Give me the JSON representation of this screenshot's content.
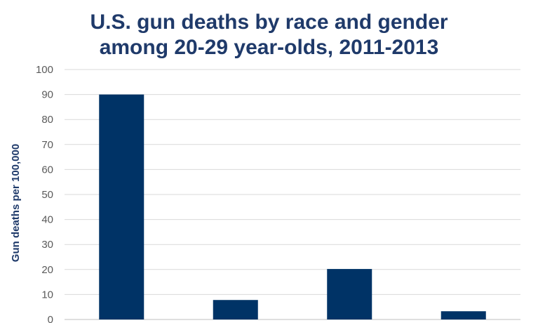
{
  "chart_data": {
    "type": "bar",
    "title": [
      "U.S. gun deaths by race and gender",
      "among 20-29 year-olds, 2011-2013"
    ],
    "xlabel": "",
    "ylabel": "Gun deaths per 100,000",
    "categories": [
      "",
      "",
      "",
      ""
    ],
    "values": [
      90,
      7.8,
      20.2,
      3.3
    ],
    "ylim": [
      0,
      100
    ],
    "yticks": [
      0,
      10,
      20,
      30,
      40,
      50,
      60,
      70,
      80,
      90,
      100
    ],
    "grid": true,
    "bar_color": "#003366",
    "grid_color": "#d9d9d9"
  }
}
